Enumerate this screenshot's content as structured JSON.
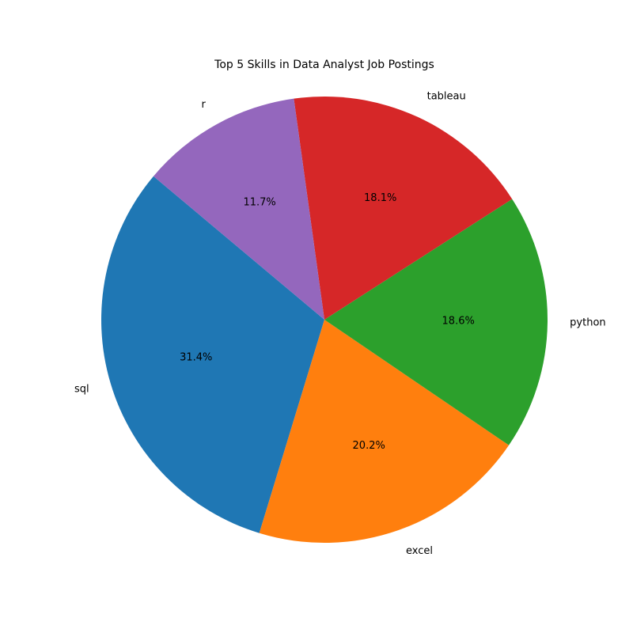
{
  "chart_data": {
    "type": "pie",
    "title": "Top 5 Skills in Data Analyst Job Postings",
    "categories": [
      "sql",
      "excel",
      "python",
      "tableau",
      "r"
    ],
    "values": [
      31.4,
      20.2,
      18.6,
      18.1,
      11.7
    ],
    "value_labels": [
      "31.4%",
      "20.2%",
      "18.6%",
      "18.1%",
      "11.7%"
    ],
    "colors": [
      "#1f77b4",
      "#ff7f0e",
      "#2ca02c",
      "#d62728",
      "#9467bd"
    ],
    "start_angle_deg": 140,
    "direction": "counterclockwise"
  }
}
